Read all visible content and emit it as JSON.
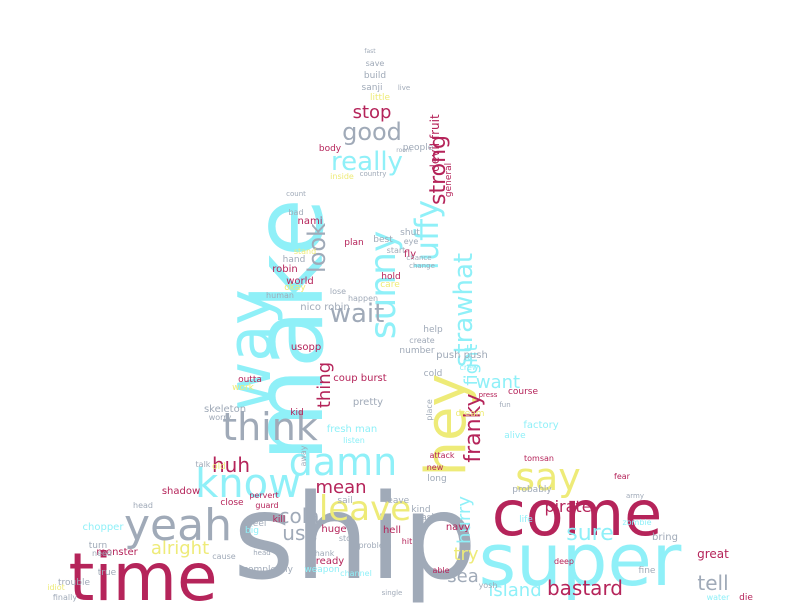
{
  "palette": {
    "crimson": "#b5245a",
    "cyan": "#8ff0f8",
    "gray": "#a0aab8",
    "yellow": "#eeeb78",
    "background": "#ffffff"
  },
  "words": [
    {
      "text": "ship",
      "color": "gray"
    },
    {
      "text": "make",
      "color": "cyan"
    },
    {
      "text": "super",
      "color": "cyan"
    },
    {
      "text": "come",
      "color": "crimson"
    },
    {
      "text": "time",
      "color": "crimson"
    },
    {
      "text": "hey",
      "color": "yellow"
    },
    {
      "text": "way",
      "color": "cyan"
    },
    {
      "text": "yeah",
      "color": "gray"
    },
    {
      "text": "know",
      "color": "cyan"
    },
    {
      "text": "think",
      "color": "gray"
    },
    {
      "text": "damn",
      "color": "cyan"
    },
    {
      "text": "sunny",
      "color": "cyan"
    },
    {
      "text": "luffy",
      "color": "cyan"
    },
    {
      "text": "say",
      "color": "yellow"
    },
    {
      "text": "leave",
      "color": "yellow"
    },
    {
      "text": "strawhat",
      "color": "cyan"
    },
    {
      "text": "wait",
      "color": "gray"
    },
    {
      "text": "look",
      "color": "gray"
    },
    {
      "text": "really",
      "color": "cyan"
    },
    {
      "text": "good",
      "color": "gray"
    },
    {
      "text": "stop",
      "color": "crimson"
    },
    {
      "text": "strong",
      "color": "crimson"
    },
    {
      "text": "franky",
      "color": "crimson"
    },
    {
      "text": "fight",
      "color": "cyan"
    },
    {
      "text": "want",
      "color": "cyan"
    },
    {
      "text": "mean",
      "color": "crimson"
    },
    {
      "text": "cola",
      "color": "gray"
    },
    {
      "text": "huh",
      "color": "crimson"
    },
    {
      "text": "alright",
      "color": "yellow"
    },
    {
      "text": "use",
      "color": "gray"
    },
    {
      "text": "thing",
      "color": "crimson"
    },
    {
      "text": "tell",
      "color": "gray"
    },
    {
      "text": "sure",
      "color": "cyan"
    },
    {
      "text": "bastard",
      "color": "crimson"
    },
    {
      "text": "island",
      "color": "cyan"
    },
    {
      "text": "try",
      "color": "yellow"
    },
    {
      "text": "sea",
      "color": "gray"
    },
    {
      "text": "hurry",
      "color": "cyan"
    },
    {
      "text": "pirate",
      "color": "crimson"
    },
    {
      "text": "devil fruit",
      "color": "crimson"
    },
    {
      "text": "skeleton",
      "color": "gray"
    },
    {
      "text": "usopp",
      "color": "crimson"
    },
    {
      "text": "coup burst",
      "color": "crimson"
    },
    {
      "text": "fresh man",
      "color": "cyan"
    },
    {
      "text": "pretty",
      "color": "gray"
    },
    {
      "text": "chopper",
      "color": "cyan"
    },
    {
      "text": "shadow",
      "color": "crimson"
    },
    {
      "text": "nico robin",
      "color": "gray"
    },
    {
      "text": "robin",
      "color": "crimson"
    },
    {
      "text": "nami",
      "color": "crimson"
    },
    {
      "text": "sanji",
      "color": "gray"
    },
    {
      "text": "world",
      "color": "crimson"
    },
    {
      "text": "monster",
      "color": "crimson"
    },
    {
      "text": "navy",
      "color": "crimson"
    },
    {
      "text": "great",
      "color": "crimson"
    },
    {
      "text": "bring",
      "color": "gray"
    },
    {
      "text": "factory",
      "color": "cyan"
    },
    {
      "text": "huge",
      "color": "crimson"
    },
    {
      "text": "hell",
      "color": "crimson"
    },
    {
      "text": "kid",
      "color": "crimson"
    },
    {
      "text": "close",
      "color": "crimson"
    },
    {
      "text": "die",
      "color": "crimson"
    },
    {
      "text": "push push",
      "color": "gray"
    },
    {
      "text": "weapon",
      "color": "cyan"
    },
    {
      "text": "kill",
      "color": "crimson"
    },
    {
      "text": "ready",
      "color": "crimson"
    },
    {
      "text": "number",
      "color": "gray"
    },
    {
      "text": "plan",
      "color": "crimson"
    },
    {
      "text": "build",
      "color": "gray"
    },
    {
      "text": "little",
      "color": "yellow"
    },
    {
      "text": "body",
      "color": "crimson"
    },
    {
      "text": "people",
      "color": "gray"
    },
    {
      "text": "save",
      "color": "gray"
    },
    {
      "text": "fast",
      "color": "gray"
    },
    {
      "text": "outta",
      "color": "crimson"
    },
    {
      "text": "hold",
      "color": "crimson"
    },
    {
      "text": "care",
      "color": "yellow"
    },
    {
      "text": "attack",
      "color": "crimson"
    },
    {
      "text": "sail",
      "color": "gray"
    },
    {
      "text": "leave",
      "color": "gray"
    },
    {
      "text": "fine",
      "color": "gray"
    },
    {
      "text": "tomsan",
      "color": "crimson"
    },
    {
      "text": "course",
      "color": "crimson"
    },
    {
      "text": "fly",
      "color": "crimson"
    },
    {
      "text": "probably",
      "color": "gray"
    },
    {
      "text": "alive",
      "color": "cyan"
    },
    {
      "text": "dream",
      "color": "yellow"
    },
    {
      "text": "cold",
      "color": "gray"
    },
    {
      "text": "help",
      "color": "gray"
    },
    {
      "text": "create",
      "color": "gray"
    },
    {
      "text": "work",
      "color": "yellow"
    },
    {
      "text": "stand",
      "color": "yellow"
    },
    {
      "text": "hand",
      "color": "gray"
    },
    {
      "text": "start",
      "color": "gray"
    },
    {
      "text": "best",
      "color": "gray"
    },
    {
      "text": "shut",
      "color": "gray"
    },
    {
      "text": "eye",
      "color": "gray"
    },
    {
      "text": "general",
      "color": "crimson"
    },
    {
      "text": "inside",
      "color": "yellow"
    },
    {
      "text": "country",
      "color": "gray"
    },
    {
      "text": "bad",
      "color": "gray"
    },
    {
      "text": "okay",
      "color": "yellow"
    },
    {
      "text": "talk",
      "color": "gray"
    },
    {
      "text": "trouble",
      "color": "gray"
    },
    {
      "text": "finally",
      "color": "gray"
    },
    {
      "text": "idiot",
      "color": "yellow"
    },
    {
      "text": "true",
      "color": "gray"
    },
    {
      "text": "turn",
      "color": "gray"
    },
    {
      "text": "need",
      "color": "gray"
    },
    {
      "text": "feel",
      "color": "gray"
    },
    {
      "text": "lose",
      "color": "gray"
    },
    {
      "text": "human",
      "color": "gray"
    },
    {
      "text": "happen",
      "color": "gray"
    },
    {
      "text": "long",
      "color": "gray"
    },
    {
      "text": "listen",
      "color": "cyan"
    },
    {
      "text": "life",
      "color": "cyan"
    },
    {
      "text": "zombie",
      "color": "cyan"
    },
    {
      "text": "kind",
      "color": "gray"
    },
    {
      "text": "ask",
      "color": "gray"
    },
    {
      "text": "completely",
      "color": "gray"
    },
    {
      "text": "thank",
      "color": "gray"
    },
    {
      "text": "story",
      "color": "gray"
    },
    {
      "text": "problem",
      "color": "gray"
    },
    {
      "text": "hit",
      "color": "crimson"
    },
    {
      "text": "new",
      "color": "crimson"
    },
    {
      "text": "place",
      "color": "gray"
    },
    {
      "text": "worry",
      "color": "gray"
    },
    {
      "text": "old",
      "color": "yellow"
    },
    {
      "text": "big",
      "color": "cyan"
    },
    {
      "text": "guard",
      "color": "crimson"
    },
    {
      "text": "pervert",
      "color": "crimson"
    },
    {
      "text": "head",
      "color": "gray"
    },
    {
      "text": "able",
      "color": "crimson"
    },
    {
      "text": "yosh",
      "color": "gray"
    },
    {
      "text": "channel",
      "color": "cyan"
    },
    {
      "text": "deep",
      "color": "crimson"
    },
    {
      "text": "water",
      "color": "cyan"
    },
    {
      "text": "press",
      "color": "crimson"
    },
    {
      "text": "fun",
      "color": "gray"
    },
    {
      "text": "crew",
      "color": "cyan"
    },
    {
      "text": "away",
      "color": "gray"
    },
    {
      "text": "cause",
      "color": "gray"
    },
    {
      "text": "chance",
      "color": "gray"
    },
    {
      "text": "change",
      "color": "gray"
    },
    {
      "text": "count",
      "color": "gray"
    },
    {
      "text": "room",
      "color": "gray"
    },
    {
      "text": "live",
      "color": "gray"
    },
    {
      "text": "fear",
      "color": "crimson"
    },
    {
      "text": "army",
      "color": "gray"
    },
    {
      "text": "single",
      "color": "gray"
    },
    {
      "text": "head",
      "color": "gray"
    }
  ]
}
